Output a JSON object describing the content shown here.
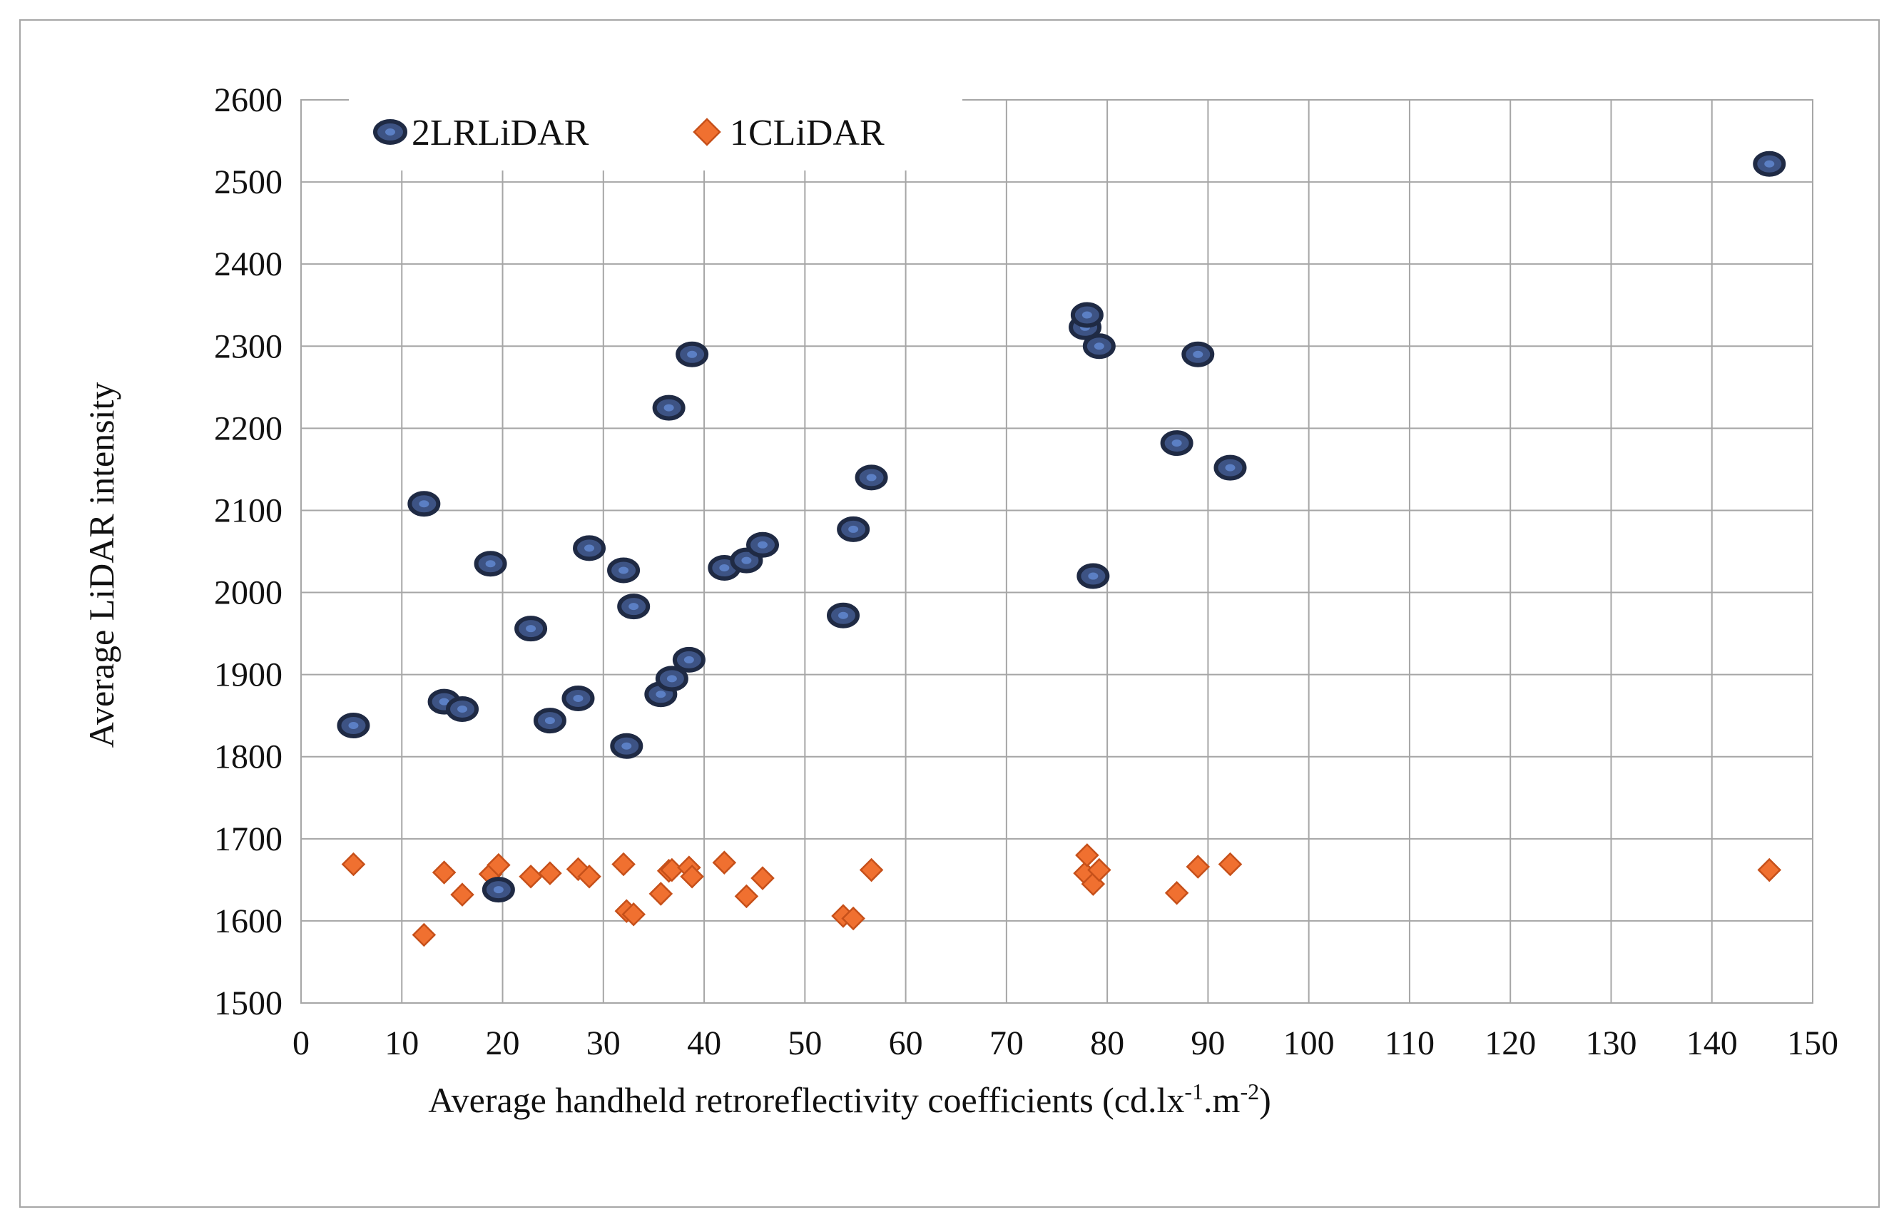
{
  "chart_data": {
    "type": "scatter",
    "xlabel": "Average  handheld retroreflectivity  coefficients (cd.lx",
    "xlabel_sup1": "-1",
    "xlabel_mid": ".m",
    "xlabel_sup2": "-2",
    "xlabel_end": ")",
    "ylabel": "Average LiDAR intensity",
    "xlim": [
      0,
      150
    ],
    "ylim": [
      1500,
      2600
    ],
    "x_ticks": [
      "0",
      "10",
      "20",
      "30",
      "40",
      "50",
      "60",
      "70",
      "80",
      "90",
      "100",
      "110",
      "120",
      "130",
      "140",
      "150"
    ],
    "y_ticks": [
      "1500",
      "1600",
      "1700",
      "1800",
      "1900",
      "2000",
      "2100",
      "2200",
      "2300",
      "2400",
      "2500",
      "2600"
    ],
    "grid": true,
    "legend_position": "top-left",
    "series": [
      {
        "name": "2LRLiDAR",
        "marker": "ellipse",
        "color": "#3d5384",
        "edge_color": "#1f2a44",
        "points": [
          [
            5.2,
            1838
          ],
          [
            12.2,
            2108
          ],
          [
            14.2,
            1867
          ],
          [
            16.0,
            1858
          ],
          [
            18.8,
            2035
          ],
          [
            19.6,
            1638
          ],
          [
            22.8,
            1956
          ],
          [
            24.7,
            1844
          ],
          [
            27.5,
            1871
          ],
          [
            28.6,
            2054
          ],
          [
            32.0,
            2027
          ],
          [
            32.3,
            1813
          ],
          [
            33.0,
            1983
          ],
          [
            35.7,
            1876
          ],
          [
            36.5,
            2225
          ],
          [
            36.8,
            1895
          ],
          [
            38.5,
            1918
          ],
          [
            38.8,
            2290
          ],
          [
            42.0,
            2030
          ],
          [
            44.2,
            2039
          ],
          [
            45.8,
            2058
          ],
          [
            53.8,
            1972
          ],
          [
            54.8,
            2077
          ],
          [
            56.6,
            2140
          ],
          [
            77.8,
            2323
          ],
          [
            78.0,
            2338
          ],
          [
            78.6,
            2020
          ],
          [
            79.2,
            2300
          ],
          [
            86.9,
            2182
          ],
          [
            89.0,
            2290
          ],
          [
            92.2,
            2152
          ],
          [
            145.7,
            2522
          ]
        ]
      },
      {
        "name": "1CLiDAR",
        "marker": "diamond",
        "color": "#f07030",
        "edge_color": "#c6501a",
        "points": [
          [
            5.2,
            1669
          ],
          [
            12.2,
            1583
          ],
          [
            14.2,
            1659
          ],
          [
            16.0,
            1632
          ],
          [
            18.8,
            1657
          ],
          [
            19.6,
            1668
          ],
          [
            22.8,
            1654
          ],
          [
            24.7,
            1658
          ],
          [
            27.5,
            1663
          ],
          [
            28.6,
            1654
          ],
          [
            32.0,
            1669
          ],
          [
            32.3,
            1612
          ],
          [
            33.0,
            1608
          ],
          [
            35.7,
            1633
          ],
          [
            36.5,
            1661
          ],
          [
            36.8,
            1662
          ],
          [
            38.5,
            1665
          ],
          [
            38.8,
            1654
          ],
          [
            42.0,
            1671
          ],
          [
            44.2,
            1630
          ],
          [
            45.8,
            1652
          ],
          [
            53.8,
            1606
          ],
          [
            54.8,
            1603
          ],
          [
            56.6,
            1662
          ],
          [
            77.8,
            1658
          ],
          [
            78.0,
            1680
          ],
          [
            78.6,
            1645
          ],
          [
            79.2,
            1662
          ],
          [
            86.9,
            1634
          ],
          [
            89.0,
            1666
          ],
          [
            92.2,
            1669
          ],
          [
            145.7,
            1662
          ]
        ]
      }
    ]
  }
}
